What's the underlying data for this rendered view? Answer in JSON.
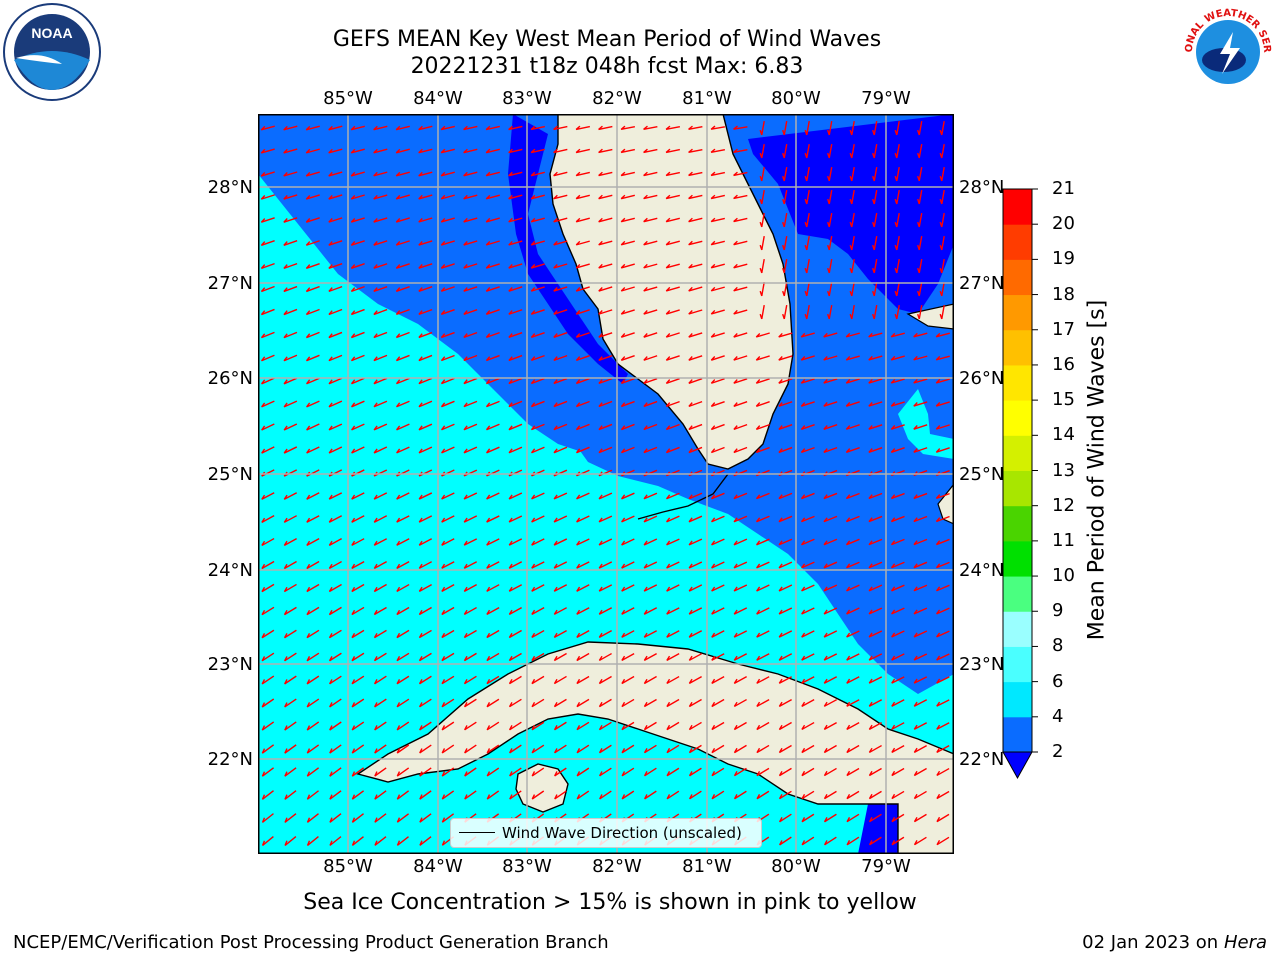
{
  "title": {
    "line1": "GEFS MEAN Key West Mean Period of Wind Waves",
    "line2": "20221231 t18z 048h fcst   Max: 6.83"
  },
  "axes": {
    "lon_labels": [
      "85°W",
      "84°W",
      "83°W",
      "82°W",
      "81°W",
      "80°W",
      "79°W"
    ],
    "lat_labels": [
      "28°N",
      "27°N",
      "26°N",
      "25°N",
      "24°N",
      "23°N",
      "22°N"
    ]
  },
  "legend": {
    "label": "Wind Wave Direction (unscaled)"
  },
  "colorbar": {
    "label": "Mean Period of Wind Waves [s]",
    "ticks": [
      "2",
      "4",
      "6",
      "8",
      "9",
      "10",
      "11",
      "12",
      "13",
      "14",
      "15",
      "16",
      "17",
      "18",
      "19",
      "20",
      "21"
    ],
    "colors": [
      "#0a6cff",
      "#00e8ff",
      "#4affff",
      "#9affff",
      "#4aff80",
      "#00e000",
      "#4ad400",
      "#a8e600",
      "#d4f000",
      "#ffff00",
      "#ffe600",
      "#ffc000",
      "#ff9900",
      "#ff6a00",
      "#ff3c00",
      "#ff0000"
    ],
    "under_color": "#0000ff"
  },
  "note": "Sea Ice Concentration > 15% is shown in pink to yellow",
  "footer": {
    "left": "NCEP/EMC/Verification Post Processing Product Generation Branch",
    "date": "02 Jan 2023 on",
    "host": "Hera"
  },
  "logos": {
    "noaa": "NOAA",
    "nws": "NATIONAL WEATHER SERVICE"
  },
  "map_colors": {
    "sea_2_4": "#0a6cff",
    "sea_4_6": "#00ffff",
    "sea_under_2": "#0000ff",
    "land": "#efeedc",
    "arrow": "#ff0000",
    "grid": "#b0b0b0"
  }
}
